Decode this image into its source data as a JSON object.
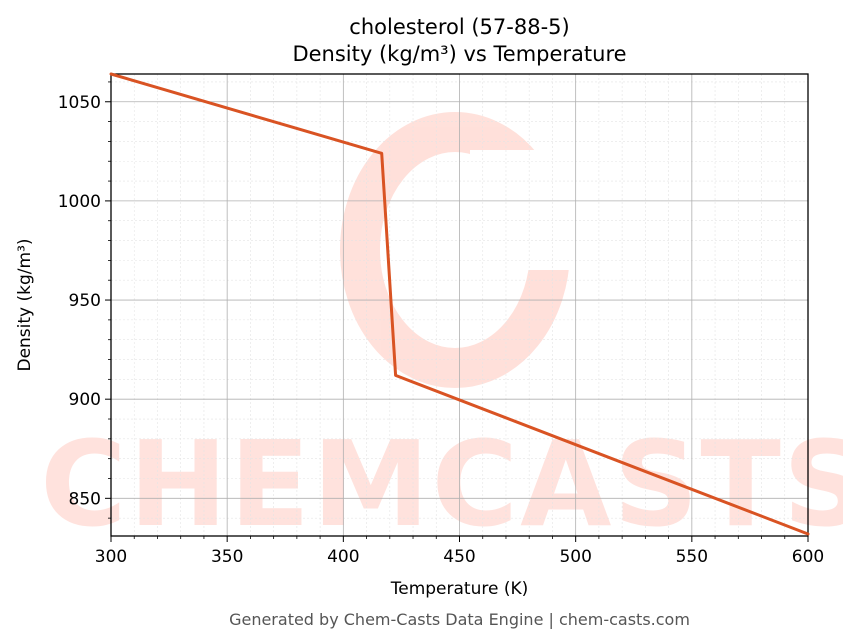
{
  "chart_data": {
    "type": "line",
    "title": "cholesterol (57-88-5)",
    "subtitle": "Density (kg/m³) vs Temperature",
    "xlabel": "Temperature (K)",
    "ylabel": "Density (kg/m³)",
    "xlim": [
      300,
      600
    ],
    "ylim": [
      831,
      1064
    ],
    "x_ticks": [
      300,
      350,
      400,
      450,
      500,
      550,
      600
    ],
    "y_ticks": [
      850,
      900,
      950,
      1000,
      1050
    ],
    "grid": true,
    "series": [
      {
        "color": "#d95323",
        "x": [
          300,
          416.5,
          422.5,
          600
        ],
        "y": [
          1064,
          1024,
          912,
          832
        ]
      }
    ]
  },
  "watermark": {
    "text": "CHEMCASTS",
    "color": "#ffd9d2"
  },
  "footer": "Generated by Chem-Casts Data Engine | chem-casts.com"
}
